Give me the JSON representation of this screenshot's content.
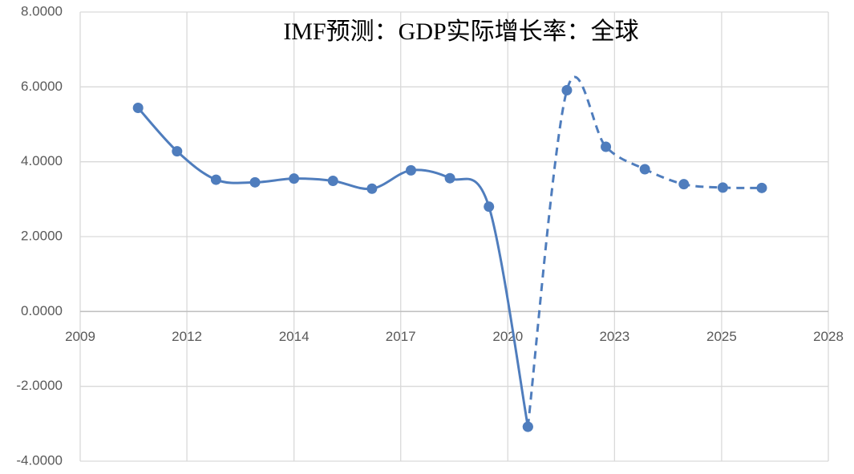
{
  "chart_data": {
    "type": "line",
    "title": "IMF预测：GDP实际增长率：全球",
    "x": [
      2010.47,
      2011.46,
      2012.45,
      2013.44,
      2014.43,
      2015.42,
      2016.41,
      2017.4,
      2018.39,
      2019.38,
      2020.37,
      2021.36,
      2022.35,
      2023.34,
      2024.33,
      2025.32,
      2026.31
    ],
    "series": [
      {
        "color": "#4f7dbd",
        "dash": false,
        "values": [
          5.44,
          4.28,
          3.52,
          3.45,
          3.55,
          3.49,
          3.28,
          3.77,
          3.56,
          2.8,
          -3.08,
          null,
          null,
          null,
          null,
          null,
          null
        ]
      },
      {
        "color": "#4f7dbd",
        "dash": true,
        "values": [
          null,
          null,
          null,
          null,
          null,
          null,
          null,
          null,
          null,
          null,
          -3.08,
          5.91,
          4.4,
          3.8,
          3.4,
          3.31,
          3.3
        ]
      }
    ],
    "xlim": [
      2009,
      2028
    ],
    "xticks": [
      2009,
      {
        "value": 2011.71,
        "label": "2012"
      },
      {
        "value": 2014.43,
        "label": "2014"
      },
      {
        "value": 2017.14,
        "label": "2017"
      },
      {
        "value": 2019.86,
        "label": "2020"
      },
      {
        "value": 2022.57,
        "label": "2023"
      },
      {
        "value": 2025.29,
        "label": "2025"
      },
      2028
    ],
    "ylim": [
      -4,
      8
    ],
    "yticks": [
      {
        "value": -4,
        "label": "-4.0000"
      },
      {
        "value": -2,
        "label": "-2.0000"
      },
      {
        "value": 0,
        "label": "0.0000"
      },
      {
        "value": 2,
        "label": "2.0000"
      },
      {
        "value": 4,
        "label": "4.0000"
      },
      {
        "value": 6,
        "label": "6.0000"
      },
      {
        "value": 8,
        "label": "8.0000"
      }
    ],
    "grid": true
  }
}
